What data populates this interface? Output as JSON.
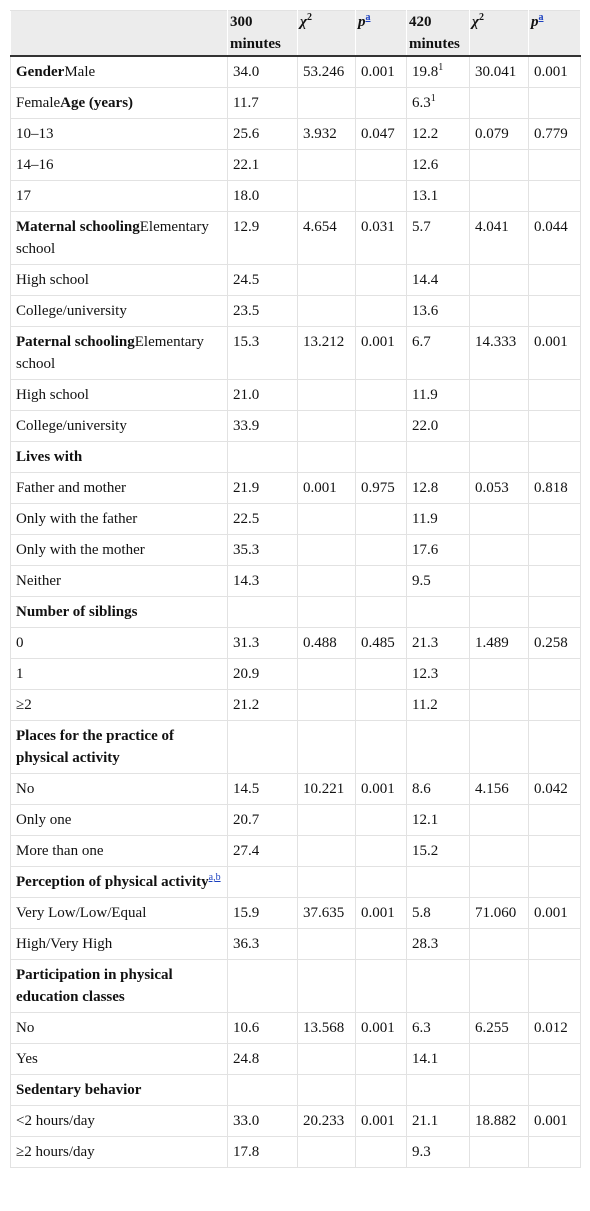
{
  "table": {
    "header": [
      null,
      "300 minutes",
      {
        "text": "χ",
        "italic": true,
        "sup": "2"
      },
      {
        "text": "p",
        "italic": true,
        "sup": "a",
        "sup_link": true
      },
      "420 minutes",
      {
        "text": "χ",
        "italic": true,
        "sup": "2"
      },
      {
        "text": "p",
        "italic": true,
        "sup": "a",
        "sup_link": true
      }
    ],
    "rows": [
      [
        [
          {
            "text": "Gender",
            "bold": true
          },
          {
            "text": "Male"
          }
        ],
        "34.0",
        "53.246",
        "0.001",
        {
          "text": "19.8",
          "sup": "1"
        },
        "30.041",
        "0.001"
      ],
      [
        [
          {
            "text": "Female"
          },
          {
            "text": "Age (years)",
            "bold": true
          }
        ],
        "11.7",
        null,
        null,
        {
          "text": "6.3",
          "sup": "1"
        },
        null,
        null
      ],
      [
        "10–13",
        "25.6",
        "3.932",
        "0.047",
        "12.2",
        "0.079",
        "0.779"
      ],
      [
        "14–16",
        "22.1",
        null,
        null,
        "12.6",
        null,
        null
      ],
      [
        "17",
        "18.0",
        null,
        null,
        "13.1",
        null,
        null
      ],
      [
        [
          {
            "text": "Maternal schooling",
            "bold": true
          },
          {
            "text": "Elementary school"
          }
        ],
        "12.9",
        "4.654",
        "0.031",
        "5.7",
        "4.041",
        "0.044"
      ],
      [
        "High school",
        "24.5",
        null,
        null,
        "14.4",
        null,
        null
      ],
      [
        "College/university",
        "23.5",
        null,
        null,
        "13.6",
        null,
        null
      ],
      [
        [
          {
            "text": "Paternal schooling",
            "bold": true
          },
          {
            "text": "Elementary school"
          }
        ],
        "15.3",
        "13.212",
        "0.001",
        "6.7",
        "14.333",
        "0.001"
      ],
      [
        "High school",
        "21.0",
        null,
        null,
        "11.9",
        null,
        null
      ],
      [
        "College/university",
        "33.9",
        null,
        null,
        "22.0",
        null,
        null
      ],
      [
        {
          "text": "Lives with",
          "bold": true
        },
        null,
        null,
        null,
        null,
        null,
        null
      ],
      [
        "Father and mother",
        "21.9",
        "0.001",
        "0.975",
        "12.8",
        "0.053",
        "0.818"
      ],
      [
        "Only with the father",
        "22.5",
        null,
        null,
        "11.9",
        null,
        null
      ],
      [
        "Only with the mother",
        "35.3",
        null,
        null,
        "17.6",
        null,
        null
      ],
      [
        "Neither",
        "14.3",
        null,
        null,
        "9.5",
        null,
        null
      ],
      [
        {
          "text": "Number of siblings",
          "bold": true
        },
        null,
        null,
        null,
        null,
        null,
        null
      ],
      [
        "0",
        "31.3",
        "0.488",
        "0.485",
        "21.3",
        "1.489",
        "0.258"
      ],
      [
        "1",
        "20.9",
        null,
        null,
        "12.3",
        null,
        null
      ],
      [
        "≥2",
        "21.2",
        null,
        null,
        "11.2",
        null,
        null
      ],
      [
        {
          "text": "Places for the practice of physical activity",
          "bold": true
        },
        null,
        null,
        null,
        null,
        null,
        null
      ],
      [
        "No",
        "14.5",
        "10.221",
        "0.001",
        "8.6",
        "4.156",
        "0.042"
      ],
      [
        "Only one",
        "20.7",
        null,
        null,
        "12.1",
        null,
        null
      ],
      [
        "More than one",
        "27.4",
        null,
        null,
        "15.2",
        null,
        null
      ],
      [
        {
          "text": "Perception of physical activity",
          "bold": true,
          "sup": "a,b",
          "sup_link": true
        },
        null,
        null,
        null,
        null,
        null,
        null
      ],
      [
        "Very Low/Low/Equal",
        "15.9",
        "37.635",
        "0.001",
        "5.8",
        "71.060",
        "0.001"
      ],
      [
        "High/Very High",
        "36.3",
        null,
        null,
        "28.3",
        null,
        null
      ],
      [
        {
          "text": "Participation in physical education classes",
          "bold": true
        },
        null,
        null,
        null,
        null,
        null,
        null
      ],
      [
        "No",
        "10.6",
        "13.568",
        "0.001",
        "6.3",
        "6.255",
        "0.012"
      ],
      [
        "Yes",
        "24.8",
        null,
        null,
        "14.1",
        null,
        null
      ],
      [
        {
          "text": "Sedentary behavior",
          "bold": true
        },
        null,
        null,
        null,
        null,
        null,
        null
      ],
      [
        "<2 hours/day",
        "33.0",
        "20.233",
        "0.001",
        "21.1",
        "18.882",
        "0.001"
      ],
      [
        "≥2 hours/day",
        "17.8",
        null,
        null,
        "9.3",
        null,
        null
      ]
    ]
  }
}
